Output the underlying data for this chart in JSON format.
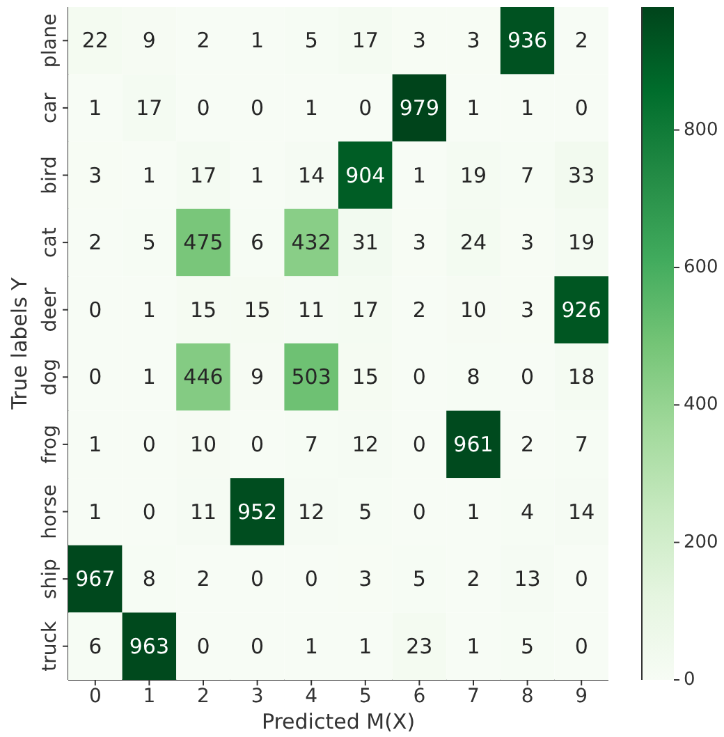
{
  "chart_data": {
    "type": "heatmap",
    "xlabel": "Predicted M(X)",
    "ylabel": "True labels Y",
    "categories": [
      "0",
      "1",
      "2",
      "3",
      "4",
      "5",
      "6",
      "7",
      "8",
      "9"
    ],
    "y_categories": [
      "plane",
      "car",
      "bird",
      "cat",
      "deer",
      "dog",
      "frog",
      "horse",
      "ship",
      "truck"
    ],
    "cells": [
      [
        22,
        9,
        2,
        1,
        5,
        17,
        3,
        3,
        936,
        2
      ],
      [
        1,
        17,
        0,
        0,
        1,
        0,
        979,
        1,
        1,
        0
      ],
      [
        3,
        1,
        17,
        1,
        14,
        904,
        1,
        19,
        7,
        33
      ],
      [
        2,
        5,
        475,
        6,
        432,
        31,
        3,
        24,
        3,
        19
      ],
      [
        0,
        1,
        15,
        15,
        11,
        17,
        2,
        10,
        3,
        926
      ],
      [
        0,
        1,
        446,
        9,
        503,
        15,
        0,
        8,
        0,
        18
      ],
      [
        1,
        0,
        10,
        0,
        7,
        12,
        0,
        961,
        2,
        7
      ],
      [
        1,
        0,
        11,
        952,
        12,
        5,
        0,
        1,
        4,
        14
      ],
      [
        967,
        8,
        2,
        0,
        0,
        3,
        5,
        2,
        13,
        0
      ],
      [
        6,
        963,
        0,
        0,
        1,
        1,
        23,
        1,
        5,
        0
      ]
    ],
    "clim": [
      0,
      979
    ],
    "cticks": [
      0,
      200,
      400,
      600,
      800
    ],
    "data_labels": true
  }
}
